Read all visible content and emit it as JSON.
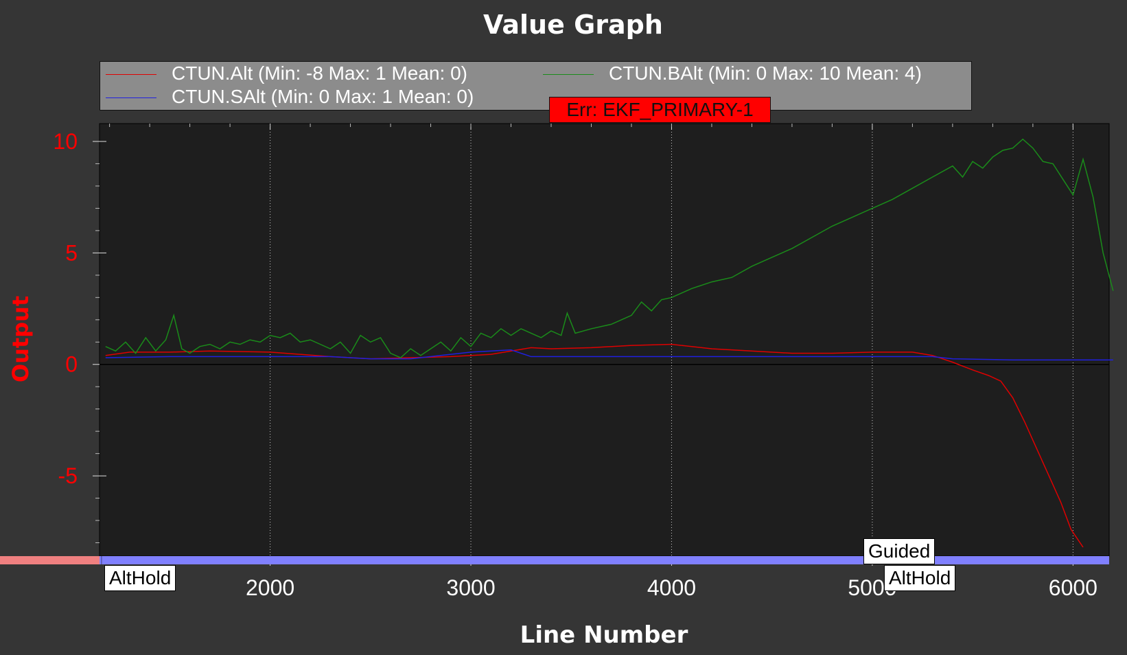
{
  "chart_data": {
    "type": "line",
    "title": "Value Graph",
    "xlabel": "Line Number",
    "ylabel": "Output",
    "xlim": [
      1150,
      6180
    ],
    "ylim": [
      -8.6,
      10.8
    ],
    "xticks": [
      2000,
      3000,
      4000,
      5000,
      6000
    ],
    "yticks": [
      -5,
      0,
      5,
      10
    ],
    "x_grid": "dotted",
    "legend_position": "top",
    "colors": {
      "background": "#353535",
      "plot_background": "#1e1e1e",
      "ylabel_and_yticks": "#ff0000"
    },
    "series": [
      {
        "name": "CTUN.Alt (Min: -8 Max: 1 Mean: 0)",
        "color": "#e00000",
        "points": [
          [
            1180,
            0.4
          ],
          [
            1300,
            0.55
          ],
          [
            1500,
            0.55
          ],
          [
            1700,
            0.6
          ],
          [
            2000,
            0.55
          ],
          [
            2150,
            0.45
          ],
          [
            2300,
            0.35
          ],
          [
            2500,
            0.25
          ],
          [
            2700,
            0.3
          ],
          [
            2900,
            0.35
          ],
          [
            3100,
            0.45
          ],
          [
            3300,
            0.75
          ],
          [
            3400,
            0.7
          ],
          [
            3600,
            0.75
          ],
          [
            3800,
            0.85
          ],
          [
            4000,
            0.9
          ],
          [
            4200,
            0.7
          ],
          [
            4400,
            0.6
          ],
          [
            4600,
            0.5
          ],
          [
            4800,
            0.5
          ],
          [
            5000,
            0.55
          ],
          [
            5200,
            0.55
          ],
          [
            5300,
            0.4
          ],
          [
            5400,
            0.1
          ],
          [
            5500,
            -0.25
          ],
          [
            5580,
            -0.5
          ],
          [
            5640,
            -0.75
          ],
          [
            5700,
            -1.5
          ],
          [
            5760,
            -2.6
          ],
          [
            5820,
            -3.8
          ],
          [
            5880,
            -5.0
          ],
          [
            5940,
            -6.2
          ],
          [
            5990,
            -7.4
          ],
          [
            6050,
            -8.2
          ]
        ]
      },
      {
        "name": "CTUN.BAlt (Min: 0 Max: 10 Mean: 4)",
        "color": "#1a8c1a",
        "points": [
          [
            1180,
            0.8
          ],
          [
            1230,
            0.6
          ],
          [
            1280,
            1.0
          ],
          [
            1330,
            0.5
          ],
          [
            1380,
            1.2
          ],
          [
            1430,
            0.6
          ],
          [
            1480,
            1.1
          ],
          [
            1520,
            2.2
          ],
          [
            1560,
            0.7
          ],
          [
            1600,
            0.5
          ],
          [
            1650,
            0.8
          ],
          [
            1700,
            0.9
          ],
          [
            1750,
            0.7
          ],
          [
            1800,
            1.0
          ],
          [
            1850,
            0.9
          ],
          [
            1900,
            1.1
          ],
          [
            1950,
            1.0
          ],
          [
            2000,
            1.3
          ],
          [
            2050,
            1.2
          ],
          [
            2100,
            1.4
          ],
          [
            2150,
            1.0
          ],
          [
            2200,
            1.1
          ],
          [
            2250,
            0.9
          ],
          [
            2300,
            0.7
          ],
          [
            2350,
            1.0
          ],
          [
            2400,
            0.5
          ],
          [
            2450,
            1.3
          ],
          [
            2500,
            1.0
          ],
          [
            2550,
            1.2
          ],
          [
            2600,
            0.5
          ],
          [
            2650,
            0.3
          ],
          [
            2700,
            0.7
          ],
          [
            2750,
            0.4
          ],
          [
            2800,
            0.7
          ],
          [
            2850,
            1.0
          ],
          [
            2900,
            0.6
          ],
          [
            2950,
            1.2
          ],
          [
            3000,
            0.8
          ],
          [
            3050,
            1.4
          ],
          [
            3100,
            1.2
          ],
          [
            3150,
            1.6
          ],
          [
            3200,
            1.3
          ],
          [
            3250,
            1.6
          ],
          [
            3300,
            1.4
          ],
          [
            3350,
            1.2
          ],
          [
            3400,
            1.5
          ],
          [
            3450,
            1.3
          ],
          [
            3480,
            2.3
          ],
          [
            3520,
            1.4
          ],
          [
            3600,
            1.6
          ],
          [
            3700,
            1.8
          ],
          [
            3800,
            2.2
          ],
          [
            3850,
            2.8
          ],
          [
            3900,
            2.4
          ],
          [
            3950,
            2.9
          ],
          [
            4000,
            3.0
          ],
          [
            4100,
            3.4
          ],
          [
            4200,
            3.7
          ],
          [
            4300,
            3.9
          ],
          [
            4400,
            4.4
          ],
          [
            4500,
            4.8
          ],
          [
            4600,
            5.2
          ],
          [
            4700,
            5.7
          ],
          [
            4800,
            6.2
          ],
          [
            4900,
            6.6
          ],
          [
            5000,
            7.0
          ],
          [
            5100,
            7.4
          ],
          [
            5200,
            7.9
          ],
          [
            5300,
            8.4
          ],
          [
            5400,
            8.9
          ],
          [
            5450,
            8.4
          ],
          [
            5500,
            9.1
          ],
          [
            5550,
            8.8
          ],
          [
            5600,
            9.3
          ],
          [
            5650,
            9.6
          ],
          [
            5700,
            9.7
          ],
          [
            5750,
            10.1
          ],
          [
            5800,
            9.7
          ],
          [
            5850,
            9.1
          ],
          [
            5900,
            9.0
          ],
          [
            5950,
            8.3
          ],
          [
            6000,
            7.6
          ],
          [
            6050,
            9.2
          ],
          [
            6100,
            7.5
          ],
          [
            6150,
            5.0
          ],
          [
            6200,
            3.3
          ]
        ]
      },
      {
        "name": "CTUN.SAlt (Min: 0 Max: 1 Mean: 0)",
        "color": "#2020e0",
        "points": [
          [
            1180,
            0.3
          ],
          [
            1500,
            0.35
          ],
          [
            2000,
            0.35
          ],
          [
            2300,
            0.35
          ],
          [
            2500,
            0.25
          ],
          [
            2700,
            0.25
          ],
          [
            3000,
            0.55
          ],
          [
            3200,
            0.65
          ],
          [
            3300,
            0.35
          ],
          [
            3500,
            0.35
          ],
          [
            4000,
            0.35
          ],
          [
            4500,
            0.35
          ],
          [
            5000,
            0.35
          ],
          [
            5300,
            0.35
          ],
          [
            5400,
            0.25
          ],
          [
            5700,
            0.2
          ],
          [
            6000,
            0.2
          ],
          [
            6200,
            0.2
          ]
        ]
      }
    ],
    "annotations": {
      "error": "Err: EKF_PRIMARY-1",
      "modes": [
        {
          "label": "AltHold",
          "x": 1160
        },
        {
          "label": "Guided",
          "x": 5020
        },
        {
          "label": "AltHold",
          "x": 5060
        }
      ]
    }
  }
}
